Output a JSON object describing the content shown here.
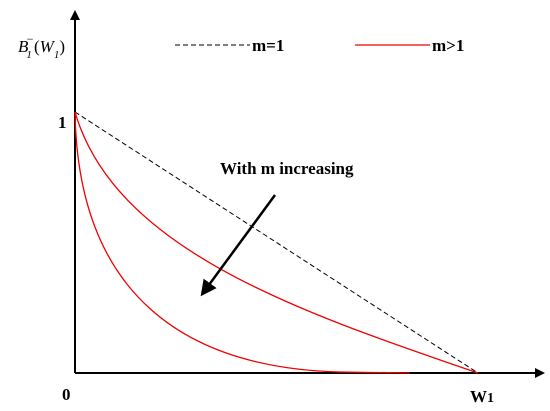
{
  "axis": {
    "y_label": {
      "base": "B",
      "sub": "1",
      "sup": "−",
      "open": "(",
      "arg": "W",
      "arg_sub": "1",
      "close": ")"
    },
    "origin": "0",
    "y_tick": "1",
    "x_label": {
      "base": "W",
      "sub": "1"
    }
  },
  "legend": {
    "items": [
      {
        "label": "m=1"
      },
      {
        "label": "m>1"
      }
    ]
  },
  "annotation": "With m increasing"
}
